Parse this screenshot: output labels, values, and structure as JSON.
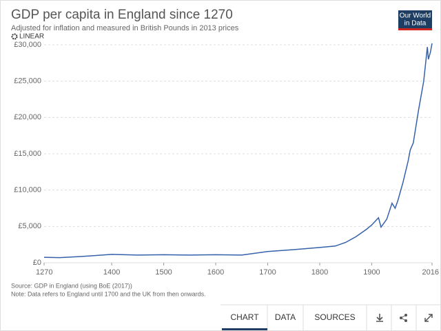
{
  "chart_data": {
    "type": "line",
    "title": "GDP per capita in England since 1270",
    "subtitle": "Adjusted for inflation and measured in British Pounds in 2013 prices",
    "x": [
      1270,
      1300,
      1340,
      1350,
      1400,
      1450,
      1500,
      1550,
      1600,
      1650,
      1700,
      1750,
      1800,
      1830,
      1850,
      1870,
      1890,
      1900,
      1913,
      1918,
      1920,
      1929,
      1939,
      1945,
      1950,
      1960,
      1970,
      1974,
      1980,
      1990,
      2000,
      2007,
      2009,
      2013,
      2016
    ],
    "series": [
      {
        "name": "England",
        "color": "#3360a9",
        "values": [
          750,
          700,
          850,
          900,
          1150,
          1050,
          1100,
          1050,
          1100,
          1050,
          1550,
          1800,
          2100,
          2300,
          2800,
          3600,
          4600,
          5200,
          6200,
          4900,
          5100,
          6000,
          8200,
          7500,
          8500,
          11000,
          14000,
          15500,
          16500,
          21000,
          25000,
          29700,
          28000,
          29000,
          30200
        ]
      }
    ],
    "xlim": [
      1270,
      2016
    ],
    "xticks": [
      1270,
      1400,
      1500,
      1600,
      1700,
      1800,
      1900,
      2016
    ],
    "ylim": [
      0,
      30000
    ],
    "yticks": [
      {
        "value": 0,
        "label": "£0"
      },
      {
        "value": 5000,
        "label": "£5,000"
      },
      {
        "value": 10000,
        "label": "£10,000"
      },
      {
        "value": 15000,
        "label": "£15,000"
      },
      {
        "value": 20000,
        "label": "£20,000"
      },
      {
        "value": 25000,
        "label": "£25,000"
      },
      {
        "value": 30000,
        "label": "£30,000"
      }
    ],
    "grid": true,
    "source": "Source: GDP in England (using BoE (2017))",
    "note": "Note: Data refers to England until 1700 and the UK from then onwards."
  },
  "ui": {
    "logo": [
      "Our World",
      "in Data"
    ],
    "scale_toggle": "LINEAR",
    "tabs": [
      "CHART",
      "DATA",
      "SOURCES"
    ]
  }
}
